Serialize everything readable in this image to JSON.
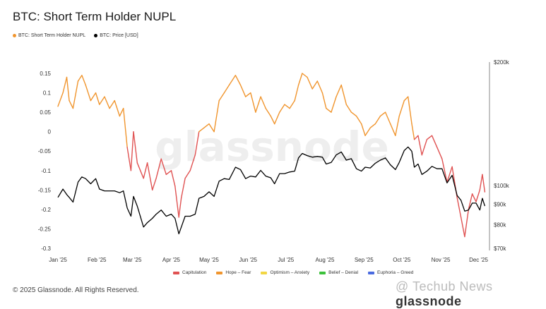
{
  "title": "BTC: Short Term Holder NUPL",
  "top_legend": [
    {
      "label": "BTC: Short Term Holder NUPL",
      "color": "#f0952e"
    },
    {
      "label": "BTC: Price [USD]",
      "color": "#000000"
    }
  ],
  "bottom_legend": [
    {
      "label": "Capitulation",
      "color": "#e05252"
    },
    {
      "label": "Hope – Fear",
      "color": "#f0952e"
    },
    {
      "label": "Optimism – Anxiety",
      "color": "#f2d643"
    },
    {
      "label": "Belief – Denial",
      "color": "#3cc13b"
    },
    {
      "label": "Euphoria – Greed",
      "color": "#4a6be0"
    }
  ],
  "copyright": "© 2025 Glassnode. All Rights Reserved.",
  "watermark": "glassnode",
  "footer_mark": {
    "prefix": "@ Techub News",
    "suffix": "glassnode"
  },
  "chart_data": {
    "type": "line",
    "title": "BTC: Short Term Holder NUPL",
    "x_ticks": [
      "Jan '25",
      "Feb '25",
      "Mar '25",
      "Apr '25",
      "May '25",
      "Jun '25",
      "Jul '25",
      "Aug '25",
      "Sep '25",
      "Oct '25",
      "Nov '25",
      "Dec '25"
    ],
    "y_left": {
      "ticks": [
        "0.15",
        "0.1",
        "0.05",
        "0",
        "-0.05",
        "-0.1",
        "-0.15",
        "-0.2",
        "-0.25",
        "-0.3"
      ],
      "ylim": [
        -0.3,
        0.17
      ]
    },
    "y_right": {
      "ticks": [
        "$200k",
        "$100k",
        "$90k",
        "$80k",
        "$70k"
      ],
      "scale": "log",
      "ylim": [
        70000,
        200000
      ]
    },
    "grid": false,
    "series": [
      {
        "name": "BTC: Short Term Holder NUPL",
        "axis": "left",
        "zone_colors": {
          "capitulation": "#e05252",
          "hope_fear": "#f0952e"
        },
        "points": [
          [
            "2025-01-01",
            0.065
          ],
          [
            "2025-01-05",
            0.1
          ],
          [
            "2025-01-08",
            0.14
          ],
          [
            "2025-01-10",
            0.08
          ],
          [
            "2025-01-13",
            0.06
          ],
          [
            "2025-01-17",
            0.13
          ],
          [
            "2025-01-20",
            0.145
          ],
          [
            "2025-01-23",
            0.12
          ],
          [
            "2025-01-27",
            0.08
          ],
          [
            "2025-01-31",
            0.1
          ],
          [
            "2025-02-03",
            0.07
          ],
          [
            "2025-02-07",
            0.09
          ],
          [
            "2025-02-11",
            0.06
          ],
          [
            "2025-02-15",
            0.08
          ],
          [
            "2025-02-19",
            0.04
          ],
          [
            "2025-02-22",
            0.06
          ],
          [
            "2025-02-25",
            -0.04
          ],
          [
            "2025-02-28",
            -0.1
          ],
          [
            "2025-03-02",
            0.0
          ],
          [
            "2025-03-05",
            -0.08
          ],
          [
            "2025-03-10",
            -0.12
          ],
          [
            "2025-03-13",
            -0.08
          ],
          [
            "2025-03-17",
            -0.15
          ],
          [
            "2025-03-20",
            -0.12
          ],
          [
            "2025-03-24",
            -0.07
          ],
          [
            "2025-03-28",
            -0.11
          ],
          [
            "2025-04-01",
            -0.1
          ],
          [
            "2025-04-04",
            -0.14
          ],
          [
            "2025-04-07",
            -0.22
          ],
          [
            "2025-04-09",
            -0.17
          ],
          [
            "2025-04-12",
            -0.12
          ],
          [
            "2025-04-16",
            -0.1
          ],
          [
            "2025-04-20",
            -0.06
          ],
          [
            "2025-04-23",
            0.0
          ],
          [
            "2025-04-27",
            0.01
          ],
          [
            "2025-05-01",
            0.02
          ],
          [
            "2025-05-05",
            0.0
          ],
          [
            "2025-05-09",
            0.08
          ],
          [
            "2025-05-13",
            0.1
          ],
          [
            "2025-05-17",
            0.12
          ],
          [
            "2025-05-22",
            0.145
          ],
          [
            "2025-05-26",
            0.12
          ],
          [
            "2025-05-30",
            0.09
          ],
          [
            "2025-06-03",
            0.1
          ],
          [
            "2025-06-07",
            0.05
          ],
          [
            "2025-06-11",
            0.09
          ],
          [
            "2025-06-15",
            0.06
          ],
          [
            "2025-06-19",
            0.04
          ],
          [
            "2025-06-22",
            0.02
          ],
          [
            "2025-06-26",
            0.05
          ],
          [
            "2025-06-30",
            0.07
          ],
          [
            "2025-07-04",
            0.06
          ],
          [
            "2025-07-08",
            0.08
          ],
          [
            "2025-07-11",
            0.12
          ],
          [
            "2025-07-14",
            0.15
          ],
          [
            "2025-07-18",
            0.14
          ],
          [
            "2025-07-22",
            0.11
          ],
          [
            "2025-07-26",
            0.13
          ],
          [
            "2025-07-30",
            0.1
          ],
          [
            "2025-08-02",
            0.06
          ],
          [
            "2025-08-06",
            0.05
          ],
          [
            "2025-08-10",
            0.09
          ],
          [
            "2025-08-14",
            0.12
          ],
          [
            "2025-08-18",
            0.07
          ],
          [
            "2025-08-22",
            0.05
          ],
          [
            "2025-08-26",
            0.04
          ],
          [
            "2025-08-30",
            0.02
          ],
          [
            "2025-09-02",
            -0.01
          ],
          [
            "2025-09-06",
            0.01
          ],
          [
            "2025-09-10",
            0.02
          ],
          [
            "2025-09-14",
            0.04
          ],
          [
            "2025-09-18",
            0.05
          ],
          [
            "2025-09-22",
            0.02
          ],
          [
            "2025-09-26",
            -0.01
          ],
          [
            "2025-09-29",
            0.04
          ],
          [
            "2025-10-03",
            0.08
          ],
          [
            "2025-10-06",
            0.09
          ],
          [
            "2025-10-09",
            0.02
          ],
          [
            "2025-10-11",
            -0.02
          ],
          [
            "2025-10-14",
            -0.01
          ],
          [
            "2025-10-17",
            -0.06
          ],
          [
            "2025-10-21",
            -0.02
          ],
          [
            "2025-10-25",
            -0.01
          ],
          [
            "2025-10-29",
            -0.04
          ],
          [
            "2025-11-02",
            -0.07
          ],
          [
            "2025-11-06",
            -0.13
          ],
          [
            "2025-11-10",
            -0.09
          ],
          [
            "2025-11-14",
            -0.17
          ],
          [
            "2025-11-17",
            -0.22
          ],
          [
            "2025-11-20",
            -0.27
          ],
          [
            "2025-11-23",
            -0.2
          ],
          [
            "2025-11-26",
            -0.16
          ],
          [
            "2025-11-29",
            -0.18
          ],
          [
            "2025-12-02",
            -0.15
          ],
          [
            "2025-12-04",
            -0.11
          ],
          [
            "2025-12-06",
            -0.155
          ]
        ]
      },
      {
        "name": "BTC: Price [USD]",
        "axis": "right",
        "color": "#000000",
        "points": [
          [
            "2025-01-01",
            93500
          ],
          [
            "2025-01-05",
            98000
          ],
          [
            "2025-01-08",
            95000
          ],
          [
            "2025-01-10",
            93500
          ],
          [
            "2025-01-13",
            91000
          ],
          [
            "2025-01-17",
            102000
          ],
          [
            "2025-01-20",
            105000
          ],
          [
            "2025-01-23",
            104000
          ],
          [
            "2025-01-27",
            101000
          ],
          [
            "2025-01-31",
            104000
          ],
          [
            "2025-02-03",
            98000
          ],
          [
            "2025-02-07",
            97000
          ],
          [
            "2025-02-11",
            97000
          ],
          [
            "2025-02-15",
            97000
          ],
          [
            "2025-02-19",
            96000
          ],
          [
            "2025-02-22",
            97000
          ],
          [
            "2025-02-25",
            88000
          ],
          [
            "2025-02-28",
            84000
          ],
          [
            "2025-03-02",
            94000
          ],
          [
            "2025-03-05",
            89000
          ],
          [
            "2025-03-10",
            79000
          ],
          [
            "2025-03-13",
            81000
          ],
          [
            "2025-03-17",
            83000
          ],
          [
            "2025-03-20",
            85000
          ],
          [
            "2025-03-24",
            87000
          ],
          [
            "2025-03-28",
            84000
          ],
          [
            "2025-04-01",
            85000
          ],
          [
            "2025-04-04",
            83000
          ],
          [
            "2025-04-07",
            76000
          ],
          [
            "2025-04-09",
            79000
          ],
          [
            "2025-04-12",
            84000
          ],
          [
            "2025-04-16",
            84000
          ],
          [
            "2025-04-20",
            85000
          ],
          [
            "2025-04-23",
            93000
          ],
          [
            "2025-04-27",
            94000
          ],
          [
            "2025-05-01",
            96500
          ],
          [
            "2025-05-05",
            94000
          ],
          [
            "2025-05-09",
            102500
          ],
          [
            "2025-05-13",
            104000
          ],
          [
            "2025-05-17",
            103500
          ],
          [
            "2025-05-22",
            111000
          ],
          [
            "2025-05-26",
            109500
          ],
          [
            "2025-05-30",
            104000
          ],
          [
            "2025-06-03",
            105500
          ],
          [
            "2025-06-07",
            105000
          ],
          [
            "2025-06-11",
            109000
          ],
          [
            "2025-06-15",
            105500
          ],
          [
            "2025-06-19",
            104500
          ],
          [
            "2025-06-22",
            101000
          ],
          [
            "2025-06-26",
            107000
          ],
          [
            "2025-06-30",
            107000
          ],
          [
            "2025-07-04",
            108000
          ],
          [
            "2025-07-08",
            108500
          ],
          [
            "2025-07-11",
            117000
          ],
          [
            "2025-07-14",
            120000
          ],
          [
            "2025-07-18",
            118500
          ],
          [
            "2025-07-22",
            117500
          ],
          [
            "2025-07-26",
            118000
          ],
          [
            "2025-07-30",
            117500
          ],
          [
            "2025-08-02",
            113000
          ],
          [
            "2025-08-06",
            114000
          ],
          [
            "2025-08-10",
            119000
          ],
          [
            "2025-08-14",
            121000
          ],
          [
            "2025-08-18",
            115500
          ],
          [
            "2025-08-22",
            116500
          ],
          [
            "2025-08-26",
            110000
          ],
          [
            "2025-08-30",
            108500
          ],
          [
            "2025-09-02",
            111000
          ],
          [
            "2025-09-06",
            110500
          ],
          [
            "2025-09-10",
            113500
          ],
          [
            "2025-09-14",
            115500
          ],
          [
            "2025-09-18",
            117000
          ],
          [
            "2025-09-22",
            112500
          ],
          [
            "2025-09-26",
            109500
          ],
          [
            "2025-09-29",
            114000
          ],
          [
            "2025-10-03",
            122000
          ],
          [
            "2025-10-06",
            124500
          ],
          [
            "2025-10-09",
            121500
          ],
          [
            "2025-10-11",
            111000
          ],
          [
            "2025-10-14",
            113000
          ],
          [
            "2025-10-17",
            106500
          ],
          [
            "2025-10-21",
            108500
          ],
          [
            "2025-10-25",
            111500
          ],
          [
            "2025-10-29",
            110000
          ],
          [
            "2025-11-02",
            110000
          ],
          [
            "2025-11-06",
            101500
          ],
          [
            "2025-11-10",
            106000
          ],
          [
            "2025-11-14",
            94500
          ],
          [
            "2025-11-17",
            92000
          ],
          [
            "2025-11-20",
            86500
          ],
          [
            "2025-11-23",
            87000
          ],
          [
            "2025-11-26",
            90500
          ],
          [
            "2025-11-29",
            90500
          ],
          [
            "2025-12-02",
            87000
          ],
          [
            "2025-12-04",
            93000
          ],
          [
            "2025-12-06",
            89000
          ]
        ]
      }
    ]
  }
}
